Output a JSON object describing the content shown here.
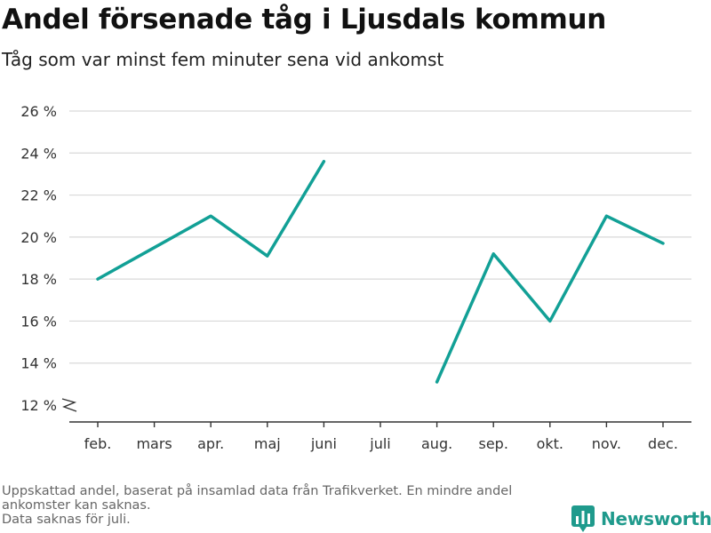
{
  "header": {
    "title": "Andel försenade tåg i Ljusdals kommun",
    "subtitle": "Tåg som var minst fem minuter sena vid ankomst"
  },
  "footer": {
    "note_lines": [
      "Uppskattad andel, baserat på insamlad data från Trafikverket. En mindre andel",
      "ankomster kan saknas.",
      "Data saknas för juli."
    ],
    "brand": "Newsworthy",
    "brand_icon": "newsworthy-chart-icon"
  },
  "colors": {
    "line": "#12a096",
    "grid": "#d9d9d9",
    "axis": "#333333",
    "brand": "#1f9a8c",
    "note": "#666666"
  },
  "chart_data": {
    "type": "line",
    "title": "Andel försenade tåg i Ljusdals kommun",
    "subtitle": "Tåg som var minst fem minuter sena vid ankomst",
    "categories": [
      "feb.",
      "mars",
      "apr.",
      "maj",
      "juni",
      "juli",
      "aug.",
      "sep.",
      "okt.",
      "nov.",
      "dec."
    ],
    "series": [
      {
        "values": [
          18.0,
          19.5,
          21.0,
          19.1,
          23.6,
          null,
          13.1,
          19.2,
          16.0,
          21.0,
          19.7
        ]
      }
    ],
    "ylim": [
      12,
      26
    ],
    "yticks": [
      12,
      14,
      16,
      18,
      20,
      22,
      24,
      26
    ],
    "ytick_labels": [
      "12 %",
      "14 %",
      "16 %",
      "18 %",
      "20 %",
      "22 %",
      "24 %",
      "26 %"
    ],
    "axis_break": true,
    "grid": true,
    "xlabel": "",
    "ylabel": ""
  }
}
